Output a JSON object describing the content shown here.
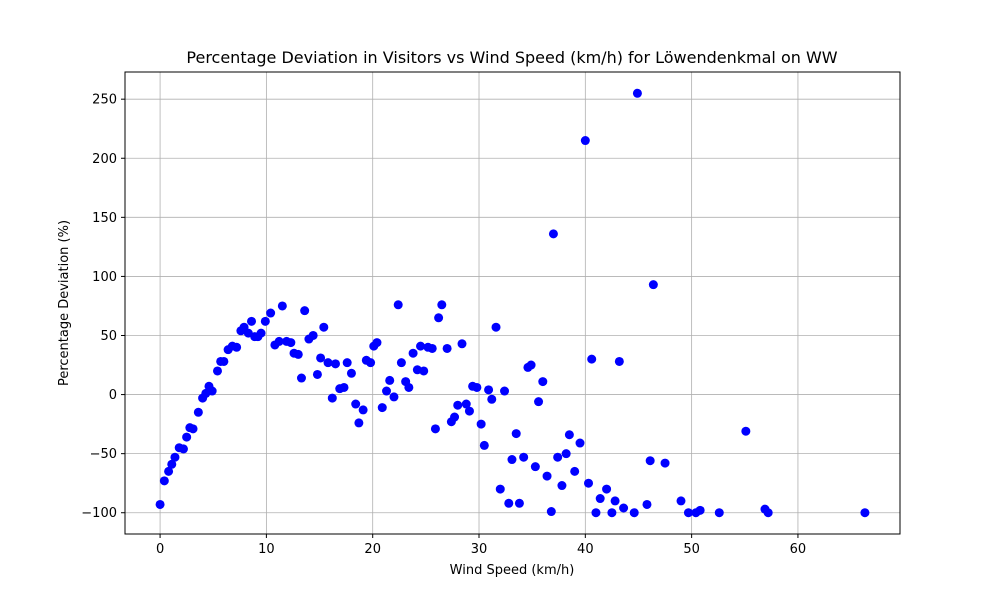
{
  "chart_data": {
    "type": "scatter",
    "title": "Percentage Deviation in Visitors vs Wind Speed (km/h) for Löwendenkmal on WW",
    "xlabel": "Wind Speed (km/h)",
    "ylabel": "Percentage Deviation (%)",
    "xlim": [
      -3.3,
      69.6
    ],
    "ylim": [
      -118,
      273
    ],
    "xticks": [
      0,
      10,
      20,
      30,
      40,
      50,
      60
    ],
    "yticks": [
      -100,
      -50,
      0,
      50,
      100,
      150,
      200,
      250
    ],
    "grid": true,
    "color": "#0000ff",
    "points": [
      [
        0.0,
        -93
      ],
      [
        0.4,
        -73
      ],
      [
        0.8,
        -65
      ],
      [
        1.1,
        -59
      ],
      [
        1.4,
        -53
      ],
      [
        1.8,
        -45
      ],
      [
        2.2,
        -46
      ],
      [
        2.5,
        -36
      ],
      [
        2.8,
        -28
      ],
      [
        3.1,
        -29
      ],
      [
        3.6,
        -15
      ],
      [
        4.0,
        -3
      ],
      [
        4.3,
        1
      ],
      [
        4.6,
        7
      ],
      [
        4.9,
        3
      ],
      [
        5.4,
        20
      ],
      [
        5.7,
        28
      ],
      [
        6.0,
        28
      ],
      [
        6.4,
        38
      ],
      [
        6.8,
        41
      ],
      [
        7.2,
        40
      ],
      [
        7.6,
        54
      ],
      [
        7.9,
        57
      ],
      [
        8.3,
        52
      ],
      [
        8.6,
        62
      ],
      [
        8.9,
        49
      ],
      [
        9.2,
        49
      ],
      [
        9.5,
        52
      ],
      [
        9.9,
        62
      ],
      [
        10.4,
        69
      ],
      [
        10.8,
        42
      ],
      [
        11.2,
        45
      ],
      [
        11.5,
        75
      ],
      [
        11.9,
        45
      ],
      [
        12.3,
        44
      ],
      [
        12.6,
        35
      ],
      [
        13.0,
        34
      ],
      [
        13.3,
        14
      ],
      [
        13.6,
        71
      ],
      [
        14.0,
        47
      ],
      [
        14.4,
        50
      ],
      [
        14.8,
        17
      ],
      [
        15.1,
        31
      ],
      [
        15.4,
        57
      ],
      [
        15.8,
        27
      ],
      [
        16.2,
        -3
      ],
      [
        16.5,
        26
      ],
      [
        16.9,
        5
      ],
      [
        17.3,
        6
      ],
      [
        17.6,
        27
      ],
      [
        18.0,
        18
      ],
      [
        18.4,
        -8
      ],
      [
        18.7,
        -24
      ],
      [
        19.1,
        -13
      ],
      [
        19.4,
        29
      ],
      [
        19.8,
        27
      ],
      [
        20.1,
        41
      ],
      [
        20.4,
        44
      ],
      [
        20.9,
        -11
      ],
      [
        21.3,
        3
      ],
      [
        21.6,
        12
      ],
      [
        22.0,
        -2
      ],
      [
        22.4,
        76
      ],
      [
        22.7,
        27
      ],
      [
        23.1,
        11
      ],
      [
        23.4,
        6
      ],
      [
        23.8,
        35
      ],
      [
        24.2,
        21
      ],
      [
        24.5,
        41
      ],
      [
        24.8,
        20
      ],
      [
        25.2,
        40
      ],
      [
        25.6,
        39
      ],
      [
        25.9,
        -29
      ],
      [
        26.2,
        65
      ],
      [
        26.5,
        76
      ],
      [
        27.0,
        39
      ],
      [
        27.4,
        -23
      ],
      [
        27.7,
        -19
      ],
      [
        28.0,
        -9
      ],
      [
        28.4,
        43
      ],
      [
        28.8,
        -8
      ],
      [
        29.1,
        -14
      ],
      [
        29.4,
        7
      ],
      [
        29.8,
        6
      ],
      [
        30.2,
        -25
      ],
      [
        30.5,
        -43
      ],
      [
        30.9,
        4
      ],
      [
        31.2,
        -4
      ],
      [
        31.6,
        57
      ],
      [
        32.0,
        -80
      ],
      [
        32.4,
        3
      ],
      [
        32.8,
        -92
      ],
      [
        33.1,
        -55
      ],
      [
        33.5,
        -33
      ],
      [
        33.8,
        -92
      ],
      [
        34.2,
        -53
      ],
      [
        34.6,
        23
      ],
      [
        34.9,
        25
      ],
      [
        35.3,
        -61
      ],
      [
        35.6,
        -6
      ],
      [
        36.0,
        11
      ],
      [
        36.4,
        -69
      ],
      [
        36.8,
        -99
      ],
      [
        37.0,
        136
      ],
      [
        37.4,
        -53
      ],
      [
        37.8,
        -77
      ],
      [
        38.2,
        -50
      ],
      [
        38.5,
        -34
      ],
      [
        39.0,
        -65
      ],
      [
        39.5,
        -41
      ],
      [
        40.0,
        215
      ],
      [
        40.3,
        -75
      ],
      [
        40.6,
        30
      ],
      [
        41.0,
        -100
      ],
      [
        41.4,
        -88
      ],
      [
        42.0,
        -80
      ],
      [
        42.5,
        -100
      ],
      [
        42.8,
        -90
      ],
      [
        43.2,
        28
      ],
      [
        43.6,
        -96
      ],
      [
        44.6,
        -100
      ],
      [
        44.9,
        255
      ],
      [
        45.8,
        -93
      ],
      [
        46.1,
        -56
      ],
      [
        46.4,
        93
      ],
      [
        47.5,
        -58
      ],
      [
        49.0,
        -90
      ],
      [
        49.7,
        -100
      ],
      [
        50.4,
        -100
      ],
      [
        50.8,
        -98
      ],
      [
        52.6,
        -100
      ],
      [
        55.1,
        -31
      ],
      [
        56.9,
        -97
      ],
      [
        57.2,
        -100
      ],
      [
        66.3,
        -100
      ]
    ]
  }
}
